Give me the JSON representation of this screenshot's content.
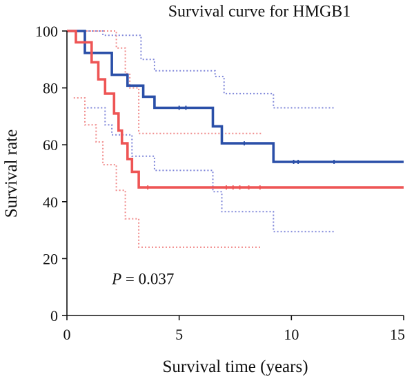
{
  "chart_data": {
    "type": "line",
    "title": "Survival curve for HMGB1",
    "xlabel": "Survival time (years)",
    "ylabel": "Survival rate",
    "xlim": [
      0,
      15
    ],
    "ylim": [
      0,
      100
    ],
    "xticks": [
      0,
      5,
      10,
      15
    ],
    "yticks": [
      0,
      20,
      40,
      60,
      80,
      100
    ],
    "xtick_labels": [
      "0",
      "5",
      "10",
      "15"
    ],
    "ytick_labels": [
      "0",
      "20",
      "40",
      "60",
      "80",
      "100"
    ],
    "grid": false,
    "legend": "none",
    "annotation": {
      "italic": "P",
      "text": " = 0.037",
      "x": 2.0,
      "y": 11
    },
    "series": [
      {
        "color": "#2a4fa8",
        "style": "solid",
        "type": "km",
        "points": [
          [
            0,
            100
          ],
          [
            0.8,
            100
          ],
          [
            0.8,
            92.3
          ],
          [
            2.0,
            92.3
          ],
          [
            2.0,
            84.6
          ],
          [
            2.7,
            84.6
          ],
          [
            2.7,
            80.8
          ],
          [
            3.4,
            80.8
          ],
          [
            3.4,
            76.9
          ],
          [
            3.9,
            76.9
          ],
          [
            3.9,
            73.0
          ],
          [
            6.5,
            73.0
          ],
          [
            6.5,
            66.5
          ],
          [
            6.9,
            66.5
          ],
          [
            6.9,
            60.5
          ],
          [
            9.2,
            60.5
          ],
          [
            9.2,
            54.0
          ],
          [
            15,
            54.0
          ]
        ],
        "censors": [
          [
            5.0,
            73.0
          ],
          [
            5.3,
            73.0
          ],
          [
            7.9,
            60.5
          ],
          [
            10.1,
            54.0
          ],
          [
            10.3,
            54.0
          ],
          [
            11.9,
            54.0
          ]
        ]
      },
      {
        "color": "#ee5555",
        "style": "solid",
        "type": "km",
        "points": [
          [
            0,
            100
          ],
          [
            0.4,
            100
          ],
          [
            0.4,
            96.0
          ],
          [
            1.1,
            96.0
          ],
          [
            1.1,
            89.0
          ],
          [
            1.4,
            89.0
          ],
          [
            1.4,
            83.0
          ],
          [
            1.7,
            83.0
          ],
          [
            1.7,
            78.0
          ],
          [
            2.1,
            78.0
          ],
          [
            2.1,
            71.0
          ],
          [
            2.3,
            71.0
          ],
          [
            2.3,
            65.0
          ],
          [
            2.45,
            65.0
          ],
          [
            2.45,
            60.5
          ],
          [
            2.7,
            60.5
          ],
          [
            2.7,
            55.0
          ],
          [
            2.9,
            55.0
          ],
          [
            2.9,
            50.5
          ],
          [
            3.2,
            50.5
          ],
          [
            3.2,
            45.0
          ],
          [
            15,
            45.0
          ]
        ],
        "censors": [
          [
            3.6,
            45.0
          ],
          [
            7.1,
            45.0
          ],
          [
            7.4,
            45.0
          ],
          [
            7.7,
            45.0
          ],
          [
            8.1,
            45.0
          ],
          [
            8.6,
            45.0
          ]
        ]
      },
      {
        "color": "#7f86d9",
        "style": "dotted",
        "type": "band",
        "points": [
          [
            0.8,
            100
          ],
          [
            1.6,
            100
          ],
          [
            1.6,
            98.5
          ],
          [
            3.3,
            98.5
          ],
          [
            3.3,
            90.0
          ],
          [
            3.9,
            90.0
          ],
          [
            3.9,
            86.0
          ],
          [
            6.6,
            86.0
          ],
          [
            6.6,
            84.0
          ],
          [
            7.0,
            84.0
          ],
          [
            7.0,
            78.0
          ],
          [
            9.2,
            78.0
          ],
          [
            9.2,
            73.0
          ],
          [
            11.9,
            73.0
          ]
        ]
      },
      {
        "color": "#7f86d9",
        "style": "dotted",
        "type": "band",
        "points": [
          [
            0.9,
            73.0
          ],
          [
            1.7,
            73.0
          ],
          [
            1.7,
            67.0
          ],
          [
            2.0,
            67.0
          ],
          [
            2.0,
            63.5
          ],
          [
            2.9,
            63.5
          ],
          [
            2.9,
            56.0
          ],
          [
            3.9,
            56.0
          ],
          [
            3.9,
            51.0
          ],
          [
            6.5,
            51.0
          ],
          [
            6.5,
            43.5
          ],
          [
            6.9,
            43.5
          ],
          [
            6.9,
            36.5
          ],
          [
            9.2,
            36.5
          ],
          [
            9.2,
            29.5
          ],
          [
            11.9,
            29.5
          ]
        ]
      },
      {
        "color": "#f08a8a",
        "style": "dotted",
        "type": "band",
        "points": [
          [
            0.4,
            100
          ],
          [
            2.2,
            100
          ],
          [
            2.2,
            94.0
          ],
          [
            2.6,
            94.0
          ],
          [
            2.6,
            85.0
          ],
          [
            2.8,
            85.0
          ],
          [
            2.8,
            80.0
          ],
          [
            3.2,
            80.0
          ],
          [
            3.2,
            64.0
          ],
          [
            8.7,
            64.0
          ]
        ]
      },
      {
        "color": "#f08a8a",
        "style": "dotted",
        "type": "band",
        "points": [
          [
            0.3,
            76.5
          ],
          [
            0.8,
            76.5
          ],
          [
            0.8,
            67.0
          ],
          [
            1.3,
            67.0
          ],
          [
            1.3,
            61.0
          ],
          [
            1.6,
            61.0
          ],
          [
            1.6,
            53.0
          ],
          [
            2.2,
            53.0
          ],
          [
            2.2,
            44.0
          ],
          [
            2.6,
            44.0
          ],
          [
            2.6,
            34.0
          ],
          [
            3.2,
            34.0
          ],
          [
            3.2,
            24.0
          ],
          [
            8.7,
            24.0
          ]
        ]
      }
    ]
  }
}
